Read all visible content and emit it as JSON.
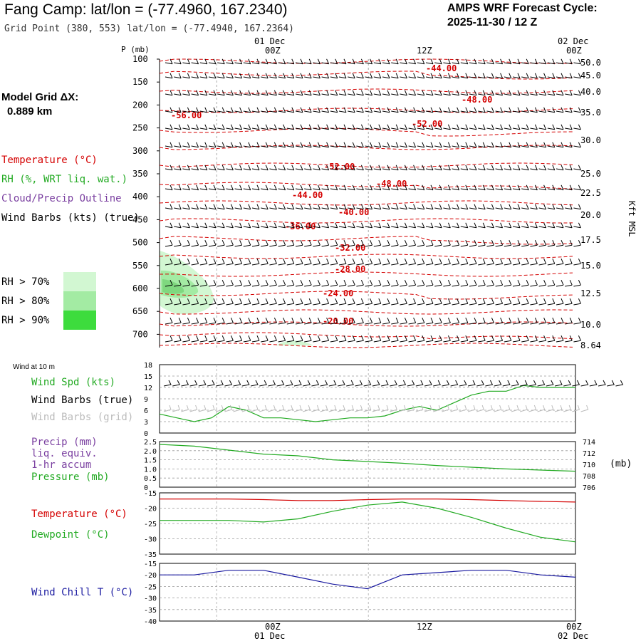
{
  "header": {
    "title": "Fang Camp:  lat/lon = (-77.4960, 167.2340)",
    "subtitle": "Grid Point (380, 553) lat/lon = (-77.4940, 167.2364)",
    "cycle_line1": "AMPS WRF Forecast Cycle:",
    "cycle_line2": "2025-11-30 / 12  Z"
  },
  "model_grid": {
    "line1": "Model Grid ΔX:",
    "line2": "0.889 km"
  },
  "colors": {
    "temperature": "#d40000",
    "rh": "#22aa22",
    "cloud": "#7a3fa0",
    "wind": "#000000",
    "wind_grid": "#bbbbbb",
    "chill": "#1a1aa0",
    "rh70": "#d2f7d2",
    "rh80": "#a3eba3",
    "rh90": "#3ddc3d"
  },
  "legend": {
    "temperature": "Temperature (°C)",
    "rh": "RH (%, WRT liq. wat.)",
    "cloud": "Cloud/Precip Outline",
    "barbs": "Wind Barbs (kts) (true)",
    "rh70": "RH > 70%",
    "rh80": "RH > 80%",
    "rh90": "RH > 90%"
  },
  "time_labels": {
    "date_top1": "01 Dec",
    "date_top2": "02 Dec",
    "t00": "00Z",
    "t12": "12Z",
    "t00b": "00Z",
    "date_bot1": "01 Dec",
    "date_bot2": "02 Dec"
  },
  "sounding": {
    "y_label": "P (mb)",
    "right_label": "Kft MSL",
    "pressure_ticks": [
      "100",
      "150",
      "200",
      "250",
      "300",
      "350",
      "400",
      "450",
      "500",
      "550",
      "600",
      "650",
      "700"
    ],
    "height_ticks": [
      "50.0",
      "45.0",
      "40.0",
      "35.0",
      "30.0",
      "25.0",
      "22.5",
      "20.0",
      "17.5",
      "15.0",
      "12.5",
      "10.0",
      "8.64"
    ],
    "temp_labels": [
      "-44.00",
      "-48.00",
      "-56.00",
      "-52.00",
      "-52.00",
      "-48.00",
      "-44.00",
      "-40.00",
      "-36.00",
      "-32.00",
      "-28.00",
      "-24.00",
      "-20.00"
    ]
  },
  "panels": {
    "wind": {
      "title": "Wind at 10 m",
      "spd": "Wind Spd (kts)",
      "barbs_true": "Wind Barbs (true)",
      "barbs_grid": "Wind Barbs (grid)",
      "y_ticks": [
        "18",
        "15",
        "12",
        "9",
        "6",
        "3",
        "0"
      ]
    },
    "precip": {
      "l1": "Precip (mm)",
      "l2": "liq. equiv.",
      "l3": "1-hr accum",
      "l4": "Pressure (mb)",
      "unit": "(mb)",
      "y_ticks": [
        "2.5",
        "2.0",
        "1.5",
        "1.0",
        "0.5",
        "0"
      ],
      "right_ticks": [
        "714",
        "712",
        "710",
        "708",
        "706"
      ]
    },
    "temp": {
      "l1": "Temperature (°C)",
      "l2": "Dewpoint (°C)",
      "y_ticks": [
        "-15",
        "-20",
        "-25",
        "-30",
        "-35"
      ]
    },
    "chill": {
      "l1": "Wind Chill T (°C)",
      "y_ticks": [
        "-15",
        "-20",
        "-25",
        "-30",
        "-35",
        "-40"
      ]
    }
  },
  "chart_data": [
    {
      "type": "line",
      "title": "Wind at 10 m",
      "x_hours": [
        0,
        2,
        4,
        6,
        8,
        10,
        12,
        14,
        16,
        18,
        20,
        22,
        24,
        26,
        28,
        30,
        32,
        34,
        36,
        38,
        40,
        42,
        44,
        46,
        48
      ],
      "series": [
        {
          "name": "Wind Spd (kts)",
          "values": [
            5,
            4,
            3,
            4,
            7,
            6,
            4,
            4,
            3.5,
            3,
            3.5,
            4,
            4,
            4.5,
            6,
            7,
            6,
            8,
            10,
            11,
            11,
            12.5,
            12,
            12,
            12
          ]
        }
      ],
      "ylim": [
        0,
        18
      ]
    },
    {
      "type": "line",
      "title": "Pressure (mb)",
      "x_hours": [
        0,
        4,
        8,
        12,
        16,
        20,
        24,
        28,
        32,
        36,
        40,
        44,
        48
      ],
      "series": [
        {
          "name": "Pressure (mb)",
          "values": [
            713.5,
            713.2,
            712.5,
            711.8,
            711.5,
            710.8,
            710.5,
            710.2,
            709.8,
            709.5,
            709.2,
            709.0,
            708.8
          ]
        }
      ],
      "ylim": [
        706,
        714
      ]
    },
    {
      "type": "line",
      "title": "Temperature / Dewpoint",
      "x_hours": [
        0,
        4,
        8,
        12,
        16,
        20,
        24,
        28,
        32,
        36,
        40,
        44,
        48
      ],
      "series": [
        {
          "name": "Temperature (°C)",
          "values": [
            -17,
            -17,
            -17,
            -17.2,
            -17.5,
            -17.5,
            -17.2,
            -17,
            -17,
            -17.2,
            -17.5,
            -17.8,
            -18
          ]
        },
        {
          "name": "Dewpoint (°C)",
          "values": [
            -24,
            -24,
            -24,
            -24.5,
            -23.5,
            -21,
            -19,
            -18,
            -20,
            -23,
            -26.5,
            -29.5,
            -31
          ]
        }
      ],
      "ylim": [
        -35,
        -15
      ]
    },
    {
      "type": "line",
      "title": "Wind Chill T",
      "x_hours": [
        0,
        4,
        8,
        12,
        16,
        20,
        24,
        28,
        32,
        36,
        40,
        44,
        48
      ],
      "series": [
        {
          "name": "Wind Chill T (°C)",
          "values": [
            -20,
            -20,
            -18,
            -18,
            -21,
            -24,
            -26,
            -20,
            -19,
            -18,
            -18,
            -20,
            -21
          ]
        }
      ],
      "ylim": [
        -40,
        -15
      ]
    }
  ]
}
